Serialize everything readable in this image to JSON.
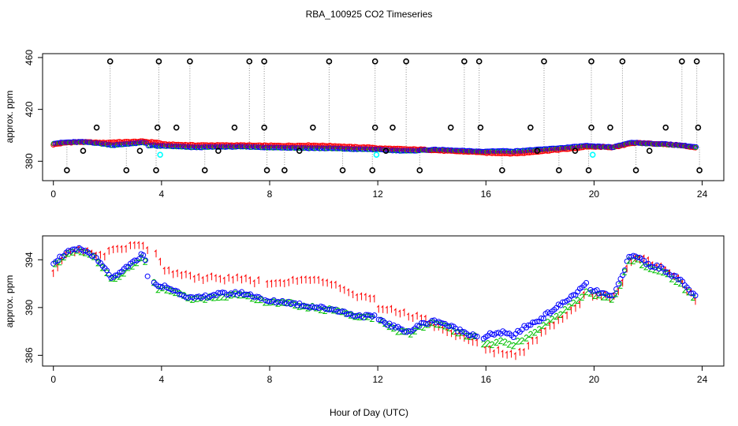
{
  "chart_data": {
    "type": "scatter",
    "title": "RBA_100925  CO2 Timeseries",
    "xlabel": "Hour of Day (UTC)",
    "colors": {
      "ring": "#000000",
      "red": "#ff0000",
      "blue": "#0000ff",
      "green": "#00c000",
      "cyan": "#00ffff",
      "gray": "#888888"
    },
    "top": {
      "ylabel": "approx. ppm",
      "xlim": [
        -0.4,
        24.8
      ],
      "ylim": [
        365,
        463
      ],
      "xticks": [
        0,
        4,
        8,
        12,
        16,
        20,
        24
      ],
      "yticks": [
        380,
        420,
        460
      ],
      "spike_times": [
        2.1,
        3.9,
        5.05,
        7.25,
        7.8,
        10.2,
        11.9,
        13.05,
        15.2,
        15.75,
        18.15,
        19.9,
        21.05,
        23.25,
        23.8
      ],
      "mid_times": [
        1.6,
        3.85,
        4.55,
        6.7,
        7.8,
        9.6,
        11.9,
        12.55,
        14.7,
        15.8,
        17.65,
        19.9,
        20.6,
        22.65,
        23.85
      ],
      "low_times": [
        0.5,
        2.7,
        3.8,
        5.6,
        7.9,
        8.55,
        10.7,
        11.8,
        13.55,
        16.6,
        18.7,
        19.8,
        21.55,
        23.9
      ],
      "minor_times": [
        1.1,
        3.2,
        6.1,
        9.1,
        12.3,
        17.9,
        19.3,
        22.05
      ],
      "cyan_times": [
        3.95,
        11.95,
        19.95
      ]
    },
    "bottom": {
      "ylabel": "approx. ppm",
      "xlim": [
        -0.4,
        24.8
      ],
      "ylim": [
        385.1,
        396.0
      ],
      "xticks": [
        0,
        4,
        8,
        12,
        16,
        20,
        24
      ],
      "yticks": [
        386,
        390,
        394
      ],
      "series": [
        {
          "name": "blue",
          "t": [
            0.0,
            0.5,
            1.0,
            1.4,
            1.8,
            2.2,
            2.45,
            2.7,
            3.0,
            3.3,
            3.45,
            3.5,
            3.7,
            3.9,
            4.1,
            4.6,
            5.2,
            6.0,
            7.0,
            7.75,
            7.8,
            8.5,
            9.5,
            10.5,
            11.0,
            11.9,
            12.0,
            12.4,
            12.8,
            13.2,
            13.6,
            14.2,
            14.6,
            15.0,
            15.4,
            15.75,
            15.8,
            16.2,
            16.6,
            17.0,
            17.4,
            18.0,
            18.6,
            19.0,
            19.5,
            19.7,
            19.8,
            20.3,
            20.7,
            21.0,
            21.3,
            21.6,
            22.0,
            22.5,
            23.0,
            23.3,
            23.75
          ],
          "v": [
            393.8,
            394.6,
            394.9,
            394.5,
            393.5,
            392.4,
            392.8,
            393.4,
            393.8,
            394.5,
            393.9,
            392.1,
            392.3,
            391.6,
            391.8,
            391.3,
            390.7,
            391.1,
            391.2,
            390.8,
            390.5,
            390.5,
            390.1,
            389.8,
            389.4,
            389.2,
            389.1,
            388.6,
            388.2,
            388.0,
            388.6,
            388.9,
            388.5,
            388.1,
            387.8,
            387.6,
            387.2,
            387.8,
            387.9,
            387.6,
            388.3,
            389.0,
            390.0,
            390.6,
            391.5,
            392.0,
            391.5,
            391.2,
            390.8,
            392.5,
            394.2,
            394.3,
            393.6,
            393.3,
            392.6,
            392.0,
            390.9
          ]
        },
        {
          "name": "green",
          "t": [
            0.0,
            0.5,
            1.0,
            1.4,
            1.8,
            2.2,
            2.45,
            2.7,
            3.0,
            3.3,
            3.45,
            3.5,
            3.7,
            3.9,
            4.1,
            4.6,
            5.2,
            6.0,
            7.0,
            7.75,
            7.8,
            8.5,
            9.5,
            10.5,
            11.0,
            11.9,
            12.0,
            12.4,
            12.8,
            13.2,
            13.6,
            14.2,
            14.6,
            15.0,
            15.4,
            15.75,
            15.8,
            16.2,
            16.6,
            17.0,
            17.4,
            18.0,
            18.6,
            19.0,
            19.5,
            19.7,
            19.8,
            20.3,
            20.7,
            21.0,
            21.3,
            21.6,
            22.0,
            22.5,
            23.0,
            23.3,
            23.75
          ],
          "v": [
            393.4,
            394.5,
            394.8,
            394.4,
            393.4,
            392.3,
            392.6,
            393.2,
            393.6,
            394.3,
            393.7,
            392.0,
            392.1,
            391.5,
            391.6,
            391.1,
            390.6,
            390.9,
            391.1,
            390.6,
            390.4,
            390.4,
            390.0,
            389.7,
            389.3,
            389.1,
            389.0,
            388.5,
            388.0,
            387.8,
            388.4,
            388.7,
            388.3,
            387.9,
            387.6,
            387.4,
            387.0,
            386.9,
            387.2,
            386.8,
            387.4,
            388.2,
            389.2,
            389.9,
            390.8,
            391.4,
            391.2,
            390.9,
            390.6,
            392.0,
            394.0,
            394.0,
            393.2,
            393.0,
            392.3,
            391.7,
            390.7
          ]
        },
        {
          "name": "red",
          "t": [
            0.0,
            0.5,
            1.0,
            1.4,
            1.8,
            2.2,
            2.45,
            2.7,
            3.0,
            3.3,
            3.45,
            3.5,
            3.7,
            3.9,
            4.1,
            4.6,
            5.2,
            6.0,
            7.0,
            7.75,
            7.8,
            8.5,
            9.5,
            10.5,
            11.0,
            11.9,
            12.0,
            12.4,
            12.8,
            13.2,
            13.6,
            14.2,
            14.6,
            15.0,
            15.4,
            15.75,
            15.8,
            16.2,
            16.6,
            17.0,
            17.4,
            18.0,
            18.6,
            19.0,
            19.5,
            19.7,
            19.8,
            20.3,
            20.7,
            21.0,
            21.3,
            21.6,
            22.0,
            22.5,
            23.0,
            23.3,
            23.75
          ],
          "v": [
            392.9,
            394.4,
            394.8,
            394.6,
            394.2,
            394.7,
            394.8,
            394.9,
            395.1,
            395.3,
            395.1,
            394.7,
            394.8,
            394.2,
            393.0,
            392.8,
            392.4,
            392.4,
            392.3,
            392.0,
            392.1,
            392.0,
            392.3,
            391.7,
            391.0,
            390.5,
            389.9,
            389.8,
            389.5,
            389.2,
            389.1,
            388.3,
            387.8,
            387.5,
            387.2,
            387.0,
            386.5,
            386.3,
            386.2,
            385.9,
            386.3,
            387.6,
            388.7,
            389.4,
            390.4,
            391.4,
            391.0,
            391.0,
            390.7,
            391.8,
            393.8,
            394.0,
            393.8,
            393.2,
            392.6,
            391.8,
            390.6
          ]
        }
      ]
    }
  }
}
